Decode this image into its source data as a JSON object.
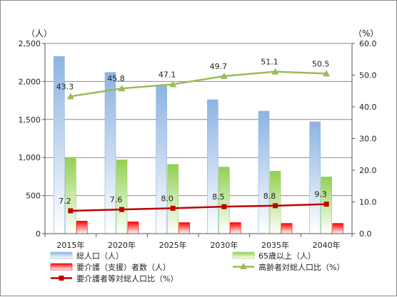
{
  "chart_data": {
    "type": "bar",
    "categories": [
      "2015年",
      "2020年",
      "2025年",
      "2030年",
      "2035年",
      "2040年"
    ],
    "left_axis": {
      "unit": "（人）",
      "ylim": [
        0,
        2500
      ],
      "ticks": [
        "0",
        "500",
        "1,000",
        "1,500",
        "2,000",
        "2,500"
      ]
    },
    "right_axis": {
      "unit": "（%）",
      "ylim": [
        0,
        60
      ],
      "ticks": [
        "0.0",
        "10.0",
        "20.0",
        "30.0",
        "40.0",
        "50.0",
        "60.0"
      ]
    },
    "series": [
      {
        "name": "総人口（人）",
        "type": "bar",
        "axis": "left",
        "color": "#8db3e2",
        "values": [
          2330,
          2120,
          1940,
          1760,
          1610,
          1470
        ]
      },
      {
        "name": "65歳以上（人）",
        "type": "bar",
        "axis": "left",
        "color": "#92d050",
        "values": [
          1000,
          970,
          910,
          875,
          820,
          745
        ]
      },
      {
        "name": "要介護（支援）者数（人）",
        "type": "bar",
        "axis": "left",
        "color": "#ff0000",
        "values": [
          165,
          155,
          145,
          145,
          135,
          135
        ]
      },
      {
        "name": "高齢者対総人口比（%）",
        "type": "line",
        "axis": "right",
        "color": "#9bbb59",
        "marker": "triangle",
        "values": [
          43.3,
          45.8,
          47.1,
          49.7,
          51.1,
          50.5
        ],
        "labels": [
          "43.3",
          "45.8",
          "47.1",
          "49.7",
          "51.1",
          "50.5"
        ]
      },
      {
        "name": "要介護者等対総人口比（%）",
        "type": "line",
        "axis": "right",
        "color": "#c00000",
        "marker": "square",
        "values": [
          7.2,
          7.6,
          8.0,
          8.5,
          8.8,
          9.3
        ],
        "labels": [
          "7.2",
          "7.6",
          "8.0",
          "8.5",
          "8.8",
          "9.3"
        ]
      }
    ],
    "grid": true,
    "legend": "bottom"
  }
}
